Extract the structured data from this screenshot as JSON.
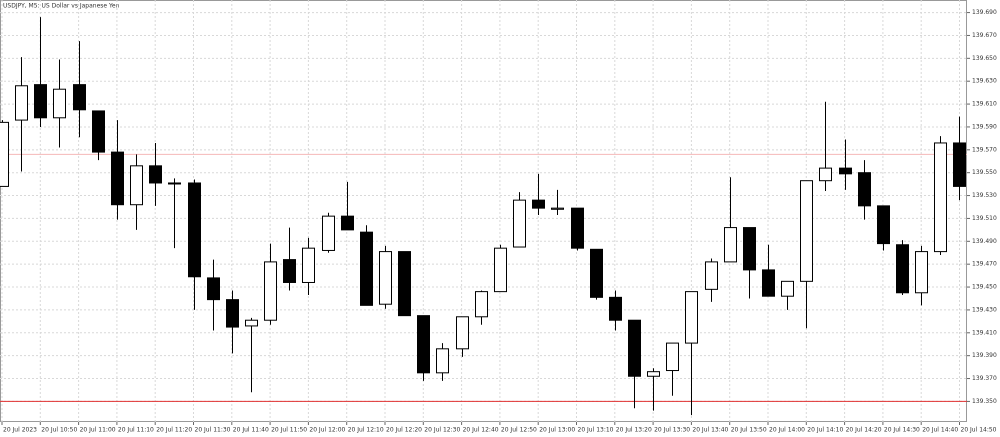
{
  "chart_data": {
    "type": "candlestick",
    "title": "USDJPY, M5:  US Dollar vs Japanese Yen",
    "categories": [
      "20 Jul 2023",
      null,
      "20 Jul 10:50",
      null,
      "20 Jul 11:00",
      null,
      "20 Jul 11:10",
      null,
      "20 Jul 11:20",
      null,
      "20 Jul 11:30",
      null,
      "20 Jul 11:40",
      null,
      "20 Jul 11:50",
      null,
      "20 Jul 12:00",
      null,
      "20 Jul 12:10",
      null,
      "20 Jul 12:20",
      null,
      "20 Jul 12:30",
      null,
      "20 Jul 12:40",
      null,
      "20 Jul 12:50",
      null,
      "20 Jul 13:00",
      null,
      "20 Jul 13:10",
      null,
      "20 Jul 13:20",
      null,
      "20 Jul 13:30",
      null,
      "20 Jul 13:40",
      null,
      "20 Jul 13:50",
      null,
      "20 Jul 14:00",
      null,
      "20 Jul 14:10",
      null,
      "20 Jul 14:20",
      null,
      "20 Jul 14:30",
      null,
      "20 Jul 14:40",
      null,
      "20 Jul 14:50"
    ],
    "open": [
      139.538,
      139.596,
      139.627,
      139.598,
      139.627,
      139.604,
      139.568,
      139.522,
      139.556,
      139.541,
      139.541,
      139.458,
      139.439,
      139.416,
      139.421,
      139.474,
      139.454,
      139.482,
      139.512,
      139.498,
      139.435,
      139.481,
      139.425,
      139.375,
      139.396,
      139.424,
      139.446,
      139.485,
      139.526,
      139.518,
      139.519,
      139.483,
      139.441,
      139.421,
      139.372,
      139.377,
      139.401,
      139.448,
      139.472,
      139.502,
      139.465,
      139.442,
      139.455,
      139.543,
      139.554,
      139.55,
      139.521,
      139.487,
      139.445,
      139.481,
      139.576
    ],
    "high": [
      139.596,
      139.651,
      139.686,
      139.649,
      139.665,
      139.604,
      139.596,
      139.566,
      139.576,
      139.545,
      139.544,
      139.474,
      139.447,
      139.423,
      139.488,
      139.502,
      139.493,
      139.515,
      139.542,
      139.504,
      139.486,
      139.481,
      139.425,
      139.401,
      139.424,
      139.447,
      139.487,
      139.533,
      139.549,
      139.535,
      139.519,
      139.483,
      139.447,
      139.421,
      139.379,
      139.401,
      139.446,
      139.475,
      139.546,
      139.502,
      139.487,
      139.455,
      139.543,
      139.612,
      139.579,
      139.561,
      139.521,
      139.491,
      139.486,
      139.582,
      139.599
    ],
    "low": [
      139.538,
      139.551,
      139.59,
      139.572,
      139.581,
      139.561,
      139.509,
      139.5,
      139.521,
      139.484,
      139.43,
      139.412,
      139.392,
      139.358,
      139.417,
      139.447,
      139.443,
      139.48,
      139.5,
      139.434,
      139.431,
      139.425,
      139.368,
      139.368,
      139.389,
      139.417,
      139.446,
      139.485,
      139.513,
      139.513,
      139.482,
      139.439,
      139.412,
      139.344,
      139.342,
      139.355,
      139.338,
      139.437,
      139.472,
      139.44,
      139.442,
      139.43,
      139.414,
      139.534,
      139.535,
      139.509,
      139.482,
      139.443,
      139.434,
      139.478,
      139.526
    ],
    "close": [
      139.594,
      139.626,
      139.598,
      139.623,
      139.605,
      139.568,
      139.522,
      139.556,
      139.541,
      139.541,
      139.459,
      139.439,
      139.415,
      139.421,
      139.472,
      139.454,
      139.484,
      139.512,
      139.5,
      139.434,
      139.481,
      139.425,
      139.375,
      139.396,
      139.424,
      139.446,
      139.484,
      139.526,
      139.519,
      139.519,
      139.484,
      139.441,
      139.421,
      139.372,
      139.376,
      139.401,
      139.446,
      139.472,
      139.502,
      139.465,
      139.442,
      139.455,
      139.543,
      139.554,
      139.549,
      139.521,
      139.488,
      139.445,
      139.481,
      139.576,
      139.538
    ],
    "up_color": "#ffffff",
    "down_color": "#000000",
    "lines": [
      {
        "value": 139.566,
        "color": "#f4b8b8"
      },
      {
        "value": 139.35,
        "color": "#e03030"
      }
    ],
    "ylim": [
      139.332,
      139.701
    ],
    "yticks": [
      {
        "value": 139.69,
        "label": "139.690"
      },
      {
        "value": 139.67,
        "label": "139.670"
      },
      {
        "value": 139.65,
        "label": "139.650"
      },
      {
        "value": 139.63,
        "label": "139.630"
      },
      {
        "value": 139.61,
        "label": "139.610"
      },
      {
        "value": 139.59,
        "label": "139.590"
      },
      {
        "value": 139.57,
        "label": "139.570"
      },
      {
        "value": 139.55,
        "label": "139.550"
      },
      {
        "value": 139.53,
        "label": "139.530"
      },
      {
        "value": 139.51,
        "label": "139.510"
      },
      {
        "value": 139.49,
        "label": "139.490"
      },
      {
        "value": 139.47,
        "label": "139.470"
      },
      {
        "value": 139.45,
        "label": "139.450"
      },
      {
        "value": 139.43,
        "label": "139.430"
      },
      {
        "value": 139.41,
        "label": "139.410"
      },
      {
        "value": 139.39,
        "label": "139.390"
      },
      {
        "value": 139.37,
        "label": "139.370"
      },
      {
        "value": 139.35,
        "label": "139.350"
      }
    ],
    "grid": true
  }
}
